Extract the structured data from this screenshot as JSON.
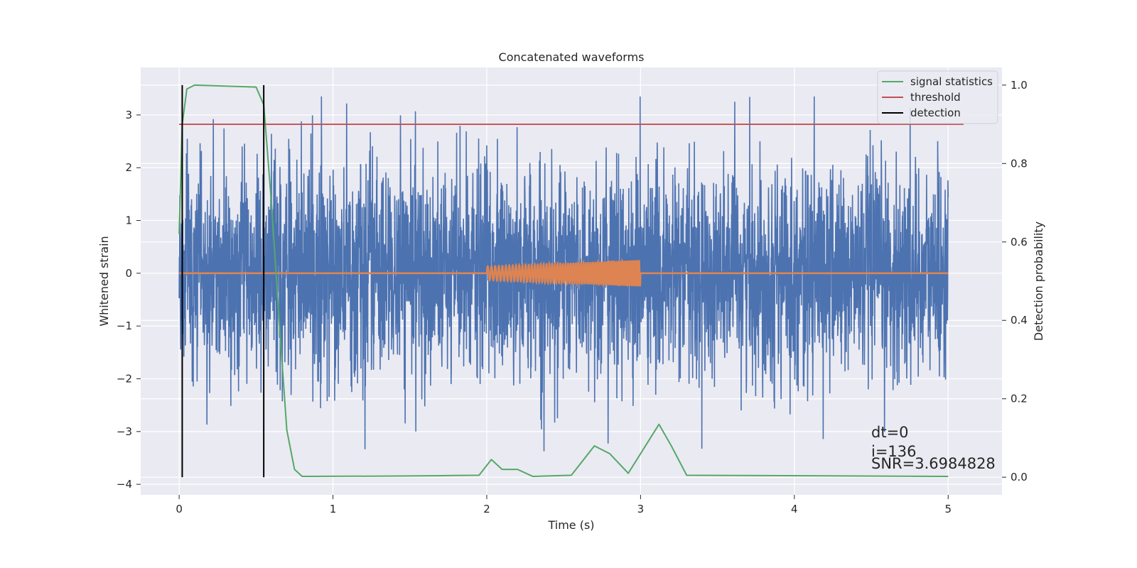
{
  "chart_data": {
    "type": "line",
    "title": "Concatenated waveforms",
    "xlabel": "Time (s)",
    "ylabel": "Whitened strain",
    "y2label": "Detection probability",
    "xlim": [
      -0.25,
      5.35
    ],
    "ylim": [
      -4.2,
      3.9
    ],
    "y2lim": [
      -0.045,
      1.045
    ],
    "xticks": [
      0,
      1,
      2,
      3,
      4,
      5
    ],
    "xtick_labels": [
      "0",
      "1",
      "2",
      "3",
      "4",
      "5"
    ],
    "yticks": [
      -4,
      -3,
      -2,
      -1,
      0,
      1,
      2,
      3
    ],
    "ytick_labels": [
      "−4",
      "−3",
      "−2",
      "−1",
      "0",
      "1",
      "2",
      "3"
    ],
    "y2ticks": [
      0.0,
      0.2,
      0.4,
      0.6,
      0.8,
      1.0
    ],
    "y2tick_labels": [
      "0.0",
      "0.2",
      "0.4",
      "0.6",
      "0.8",
      "1.0"
    ],
    "grid": true,
    "legend_position": "top-right",
    "colors": {
      "strain": "#4c72b0",
      "template": "#dd8452",
      "signal_statistics": "#55a868",
      "threshold": "#c44e52",
      "detection": "#000000",
      "background": "#eaeaf2",
      "grid": "#ffffff"
    },
    "legend": [
      {
        "label": "signal statistics",
        "color": "#55a868"
      },
      {
        "label": "threshold",
        "color": "#c44e52"
      },
      {
        "label": "detection",
        "color": "#000000"
      }
    ],
    "series": {
      "whitened_strain": {
        "x_range": [
          0,
          5
        ],
        "rms": 1.0,
        "min": -3.6,
        "max": 3.35
      },
      "template": {
        "x_range": [
          2,
          3
        ],
        "amplitude_start": 0.13,
        "amplitude_end": 0.25
      },
      "signal_statistics": {
        "points": [
          [
            0.0,
            0.62
          ],
          [
            0.02,
            0.9
          ],
          [
            0.05,
            0.99
          ],
          [
            0.1,
            1.0
          ],
          [
            0.5,
            0.995
          ],
          [
            0.55,
            0.95
          ],
          [
            0.6,
            0.7
          ],
          [
            0.65,
            0.4
          ],
          [
            0.7,
            0.12
          ],
          [
            0.75,
            0.02
          ],
          [
            0.8,
            0.002
          ],
          [
            1.4,
            0.003
          ],
          [
            1.7,
            0.004
          ],
          [
            1.95,
            0.005
          ],
          [
            2.03,
            0.045
          ],
          [
            2.1,
            0.02
          ],
          [
            2.2,
            0.02
          ],
          [
            2.3,
            0.002
          ],
          [
            2.55,
            0.005
          ],
          [
            2.7,
            0.08
          ],
          [
            2.8,
            0.06
          ],
          [
            2.92,
            0.01
          ],
          [
            3.12,
            0.135
          ],
          [
            3.2,
            0.08
          ],
          [
            3.3,
            0.005
          ],
          [
            5.0,
            0.002
          ]
        ]
      },
      "threshold": {
        "value": 0.9,
        "x_range": [
          0,
          5.1
        ]
      },
      "detections": [
        0.02,
        0.55
      ],
      "detection_range": [
        0.0,
        1.0
      ]
    },
    "annotations": [
      "dt=0",
      "i=136",
      "SNR=3.6984828"
    ]
  }
}
